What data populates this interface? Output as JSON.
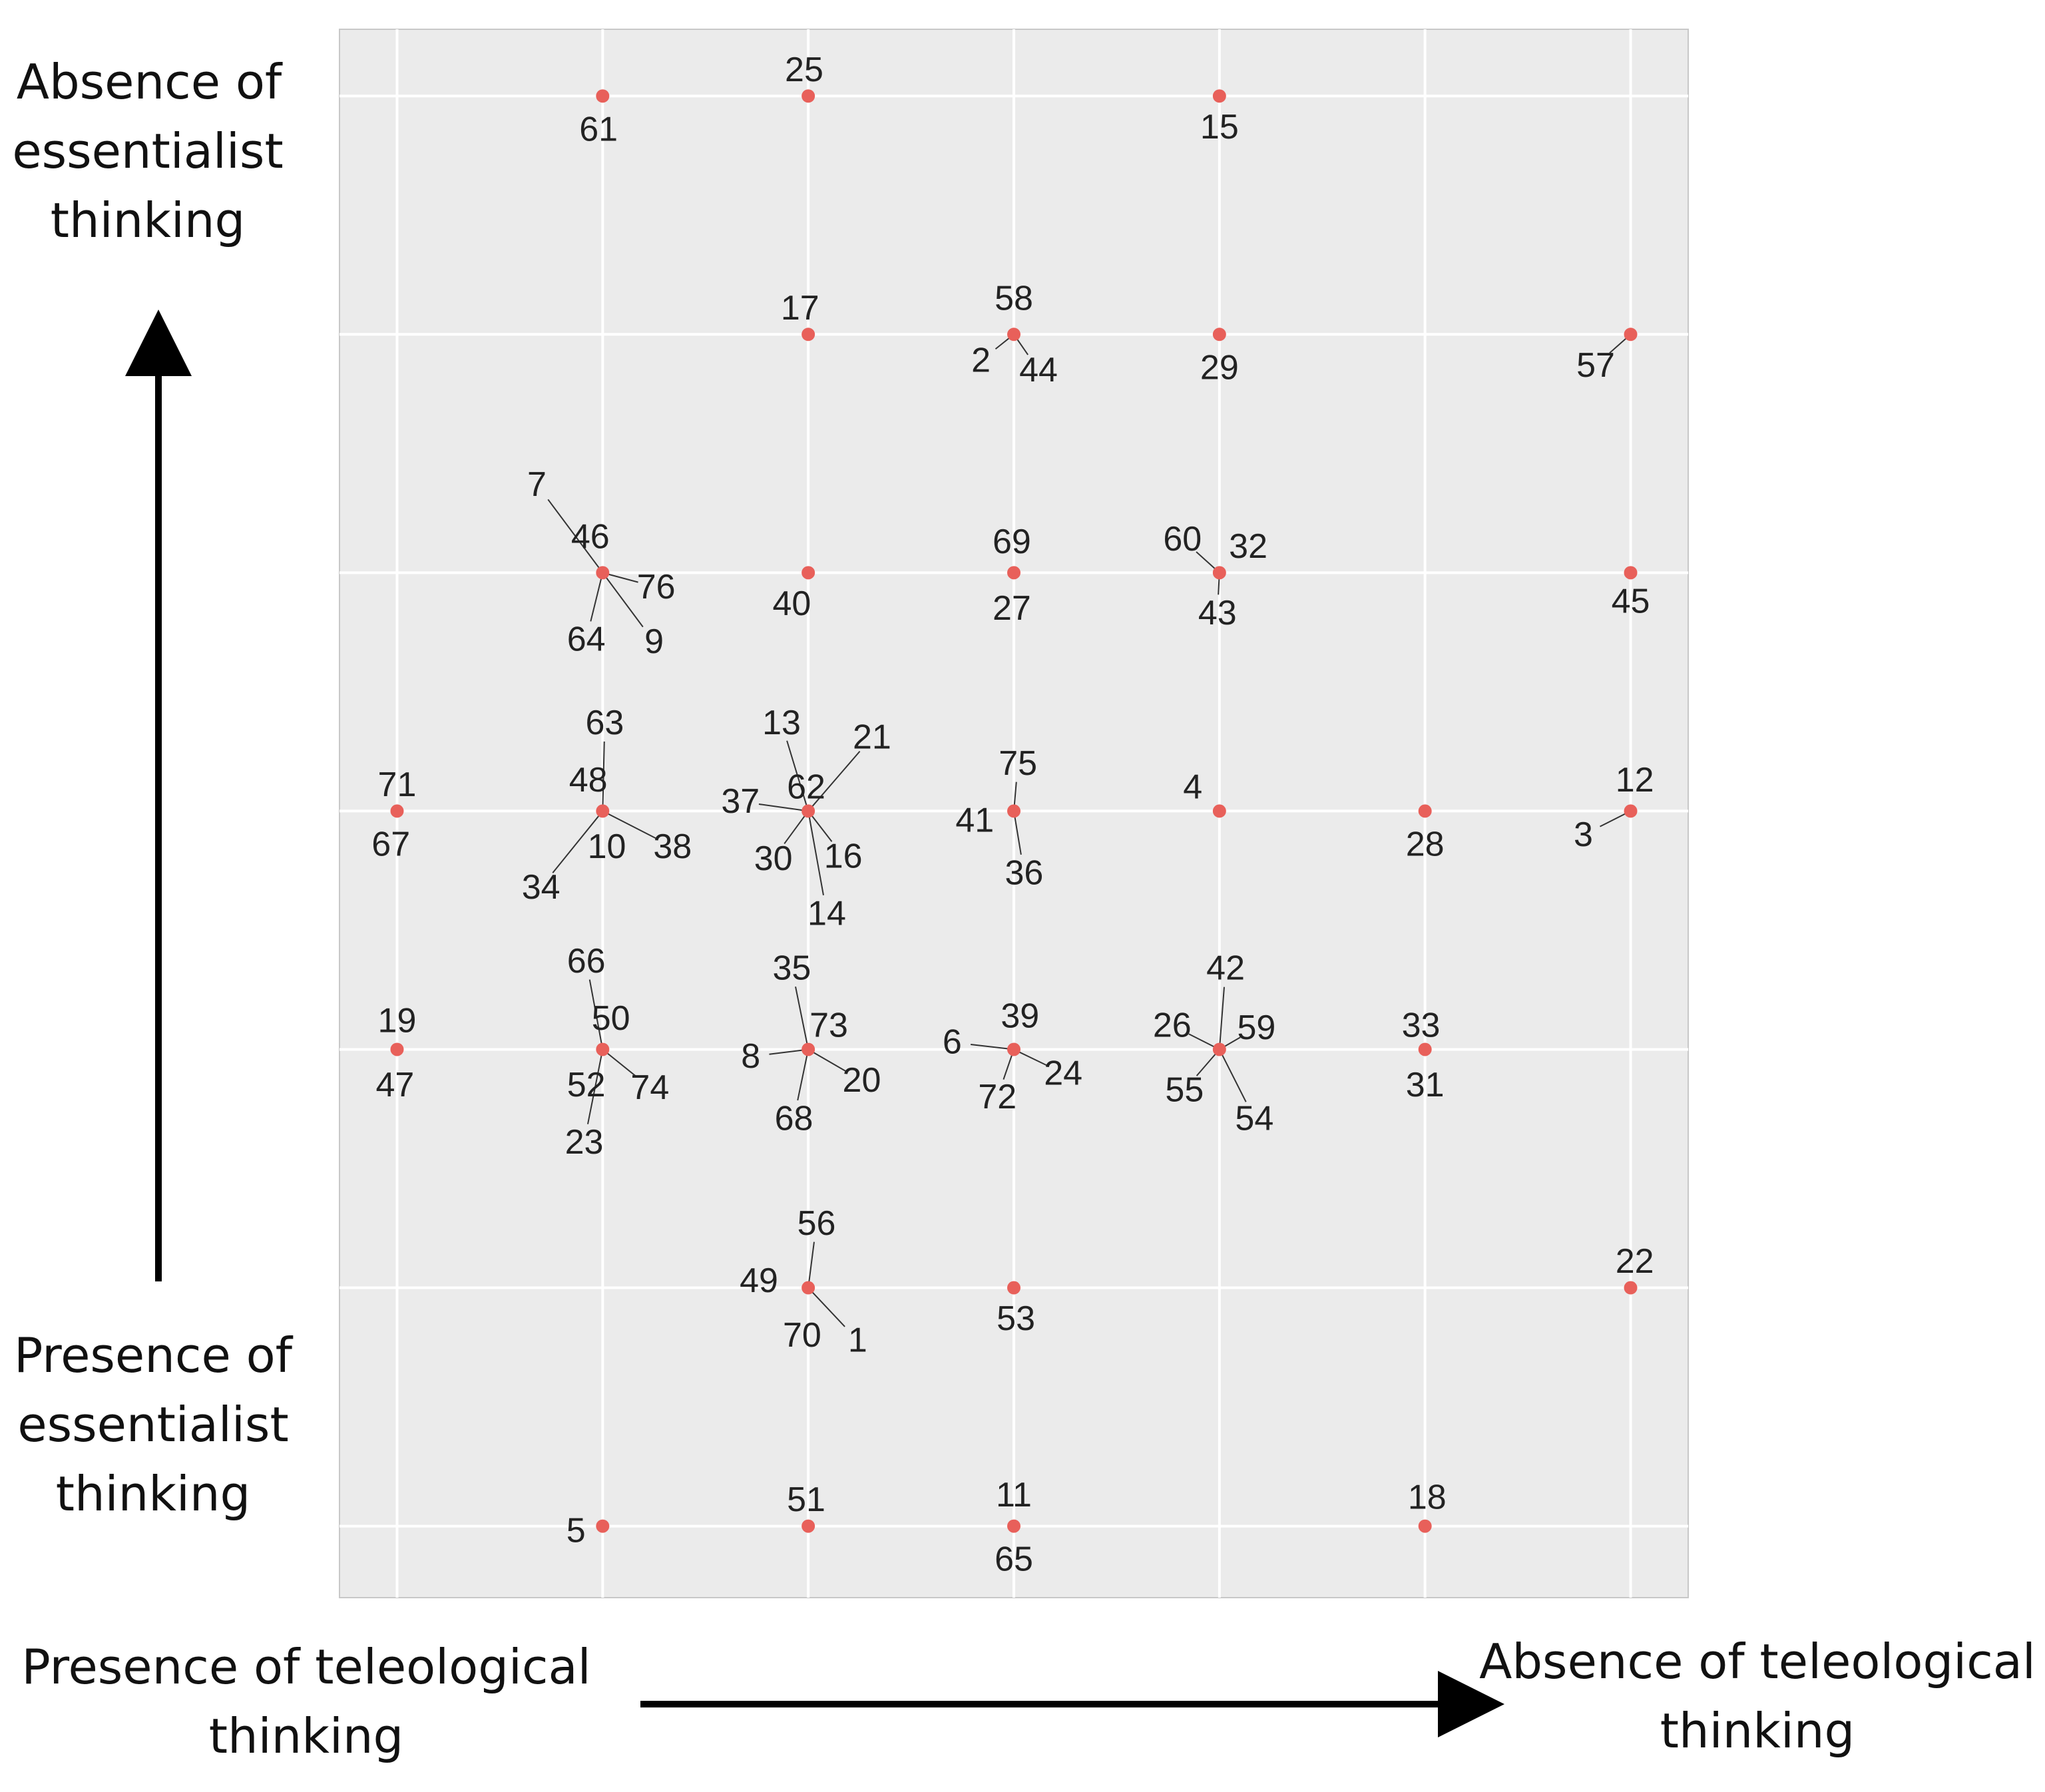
{
  "chart_data": {
    "type": "scatter",
    "title": "",
    "xlabel_left": [
      "Presence of teleological",
      "thinking"
    ],
    "xlabel_right": [
      "Absence of teleological",
      "thinking"
    ],
    "ylabel_top": [
      "Absence of",
      "essentialist",
      "thinking"
    ],
    "ylabel_bottom": [
      "Presence of",
      "essentialist",
      "thinking"
    ],
    "xlim": [
      0.72,
      7.28
    ],
    "ylim": [
      0.7,
      7.28
    ],
    "grid": true,
    "tick_labels_shown": false,
    "colors": {
      "panel": "#ebebeb",
      "grid": "#ffffff",
      "point": "#e8605a",
      "text": "#222222",
      "leader": "#333333"
    },
    "points": [
      {
        "x": 2,
        "y": 7,
        "labels": [
          {
            "t": "61",
            "dx": -0.02,
            "dy": -0.14
          }
        ]
      },
      {
        "x": 3,
        "y": 7,
        "labels": [
          {
            "t": "25",
            "dx": -0.02,
            "dy": 0.11
          }
        ]
      },
      {
        "x": 5,
        "y": 7,
        "labels": [
          {
            "t": "15",
            "dx": 0.0,
            "dy": -0.13
          }
        ]
      },
      {
        "x": 3,
        "y": 6,
        "labels": [
          {
            "t": "17",
            "dx": -0.04,
            "dy": 0.11
          }
        ]
      },
      {
        "x": 4,
        "y": 6,
        "labels": [
          {
            "t": "58",
            "dx": 0.0,
            "dy": 0.15
          },
          {
            "t": "2",
            "dx": -0.16,
            "dy": -0.11,
            "lead": true
          },
          {
            "t": "44",
            "dx": 0.12,
            "dy": -0.15,
            "lead": true
          }
        ]
      },
      {
        "x": 5,
        "y": 6,
        "labels": [
          {
            "t": "29",
            "dx": 0.0,
            "dy": -0.14
          }
        ]
      },
      {
        "x": 7,
        "y": 6,
        "labels": [
          {
            "t": "57",
            "dx": -0.17,
            "dy": -0.13,
            "lead": true
          }
        ]
      },
      {
        "x": 2,
        "y": 5,
        "labels": [
          {
            "t": "7",
            "dx": -0.32,
            "dy": 0.37,
            "lead": true
          },
          {
            "t": "46",
            "dx": -0.06,
            "dy": 0.15
          },
          {
            "t": "76",
            "dx": 0.26,
            "dy": -0.06,
            "lead": true
          },
          {
            "t": "64",
            "dx": -0.08,
            "dy": -0.28,
            "lead": true
          },
          {
            "t": "9",
            "dx": 0.25,
            "dy": -0.29,
            "lead": true
          }
        ]
      },
      {
        "x": 3,
        "y": 5,
        "labels": [
          {
            "t": "40",
            "dx": -0.08,
            "dy": -0.13
          }
        ]
      },
      {
        "x": 4,
        "y": 5,
        "labels": [
          {
            "t": "69",
            "dx": -0.01,
            "dy": 0.13
          },
          {
            "t": "27",
            "dx": -0.01,
            "dy": -0.15
          }
        ]
      },
      {
        "x": 5,
        "y": 5,
        "labels": [
          {
            "t": "60",
            "dx": -0.18,
            "dy": 0.14,
            "lead": true
          },
          {
            "t": "32",
            "dx": 0.14,
            "dy": 0.11
          },
          {
            "t": "43",
            "dx": -0.01,
            "dy": -0.17,
            "lead": true
          }
        ]
      },
      {
        "x": 7,
        "y": 5,
        "labels": [
          {
            "t": "45",
            "dx": 0.0,
            "dy": -0.12
          }
        ]
      },
      {
        "x": 1,
        "y": 4,
        "labels": [
          {
            "t": "71",
            "dx": 0.0,
            "dy": 0.11
          },
          {
            "t": "67",
            "dx": -0.03,
            "dy": -0.14
          }
        ]
      },
      {
        "x": 2,
        "y": 4,
        "labels": [
          {
            "t": "63",
            "dx": 0.01,
            "dy": 0.37,
            "lead": true
          },
          {
            "t": "48",
            "dx": -0.07,
            "dy": 0.13
          },
          {
            "t": "10",
            "dx": 0.02,
            "dy": -0.15
          },
          {
            "t": "38",
            "dx": 0.34,
            "dy": -0.15,
            "lead": true
          },
          {
            "t": "34",
            "dx": -0.3,
            "dy": -0.32,
            "lead": true
          }
        ]
      },
      {
        "x": 3,
        "y": 4,
        "labels": [
          {
            "t": "13",
            "dx": -0.13,
            "dy": 0.37,
            "lead": true
          },
          {
            "t": "21",
            "dx": 0.31,
            "dy": 0.31,
            "lead": true
          },
          {
            "t": "62",
            "dx": -0.01,
            "dy": 0.1
          },
          {
            "t": "37",
            "dx": -0.33,
            "dy": 0.04,
            "lead": true
          },
          {
            "t": "30",
            "dx": -0.17,
            "dy": -0.2,
            "lead": true
          },
          {
            "t": "16",
            "dx": 0.17,
            "dy": -0.19,
            "lead": true
          },
          {
            "t": "14",
            "dx": 0.09,
            "dy": -0.43,
            "lead": true
          }
        ]
      },
      {
        "x": 4,
        "y": 4,
        "labels": [
          {
            "t": "75",
            "dx": 0.02,
            "dy": 0.2,
            "lead": true
          },
          {
            "t": "41",
            "dx": -0.19,
            "dy": -0.04
          },
          {
            "t": "36",
            "dx": 0.05,
            "dy": -0.26,
            "lead": true
          }
        ]
      },
      {
        "x": 5,
        "y": 4,
        "labels": [
          {
            "t": "4",
            "dx": -0.13,
            "dy": 0.1
          }
        ]
      },
      {
        "x": 6,
        "y": 4,
        "labels": [
          {
            "t": "28",
            "dx": 0.0,
            "dy": -0.14
          }
        ]
      },
      {
        "x": 7,
        "y": 4,
        "labels": [
          {
            "t": "12",
            "dx": 0.02,
            "dy": 0.13
          },
          {
            "t": "3",
            "dx": -0.23,
            "dy": -0.1,
            "lead": true
          }
        ]
      },
      {
        "x": 1,
        "y": 3,
        "labels": [
          {
            "t": "19",
            "dx": 0.0,
            "dy": 0.12
          },
          {
            "t": "47",
            "dx": -0.01,
            "dy": -0.15
          }
        ]
      },
      {
        "x": 2,
        "y": 3,
        "labels": [
          {
            "t": "66",
            "dx": -0.08,
            "dy": 0.37,
            "lead": true
          },
          {
            "t": "50",
            "dx": 0.04,
            "dy": 0.13
          },
          {
            "t": "52",
            "dx": -0.08,
            "dy": -0.15
          },
          {
            "t": "74",
            "dx": 0.23,
            "dy": -0.16,
            "lead": true
          },
          {
            "t": "23",
            "dx": -0.09,
            "dy": -0.39,
            "lead": true
          }
        ]
      },
      {
        "x": 3,
        "y": 3,
        "labels": [
          {
            "t": "35",
            "dx": -0.08,
            "dy": 0.34,
            "lead": true
          },
          {
            "t": "73",
            "dx": 0.1,
            "dy": 0.1
          },
          {
            "t": "8",
            "dx": -0.28,
            "dy": -0.03,
            "lead": true
          },
          {
            "t": "20",
            "dx": 0.26,
            "dy": -0.13,
            "lead": true
          },
          {
            "t": "68",
            "dx": -0.07,
            "dy": -0.29,
            "lead": true
          }
        ]
      },
      {
        "x": 4,
        "y": 3,
        "labels": [
          {
            "t": "39",
            "dx": 0.03,
            "dy": 0.14
          },
          {
            "t": "6",
            "dx": -0.3,
            "dy": 0.03,
            "lead": true
          },
          {
            "t": "24",
            "dx": 0.24,
            "dy": -0.1,
            "lead": true
          },
          {
            "t": "72",
            "dx": -0.08,
            "dy": -0.2,
            "lead": true
          }
        ]
      },
      {
        "x": 5,
        "y": 3,
        "labels": [
          {
            "t": "42",
            "dx": 0.03,
            "dy": 0.34,
            "lead": true
          },
          {
            "t": "26",
            "dx": -0.23,
            "dy": 0.1,
            "lead": true
          },
          {
            "t": "59",
            "dx": 0.18,
            "dy": 0.09,
            "lead": true
          },
          {
            "t": "55",
            "dx": -0.17,
            "dy": -0.17,
            "lead": true
          },
          {
            "t": "54",
            "dx": 0.17,
            "dy": -0.29,
            "lead": true
          }
        ]
      },
      {
        "x": 6,
        "y": 3,
        "labels": [
          {
            "t": "33",
            "dx": -0.02,
            "dy": 0.1
          },
          {
            "t": "31",
            "dx": 0.0,
            "dy": -0.15
          }
        ]
      },
      {
        "x": 3,
        "y": 2,
        "labels": [
          {
            "t": "56",
            "dx": 0.04,
            "dy": 0.27,
            "lead": true
          },
          {
            "t": "49",
            "dx": -0.24,
            "dy": 0.03
          },
          {
            "t": "70",
            "dx": -0.03,
            "dy": -0.2
          },
          {
            "t": "1",
            "dx": 0.24,
            "dy": -0.22,
            "lead": true
          }
        ]
      },
      {
        "x": 4,
        "y": 2,
        "labels": [
          {
            "t": "53",
            "dx": 0.01,
            "dy": -0.13
          }
        ]
      },
      {
        "x": 7,
        "y": 2,
        "labels": [
          {
            "t": "22",
            "dx": 0.02,
            "dy": 0.11
          }
        ]
      },
      {
        "x": 2,
        "y": 1,
        "labels": [
          {
            "t": "5",
            "dx": -0.13,
            "dy": -0.02
          }
        ]
      },
      {
        "x": 3,
        "y": 1,
        "labels": [
          {
            "t": "51",
            "dx": -0.01,
            "dy": 0.11
          }
        ]
      },
      {
        "x": 4,
        "y": 1,
        "labels": [
          {
            "t": "11",
            "dx": 0.0,
            "dy": 0.13
          },
          {
            "t": "65",
            "dx": 0.0,
            "dy": -0.14
          }
        ]
      },
      {
        "x": 6,
        "y": 1,
        "labels": [
          {
            "t": "18",
            "dx": 0.01,
            "dy": 0.12
          }
        ]
      }
    ]
  }
}
